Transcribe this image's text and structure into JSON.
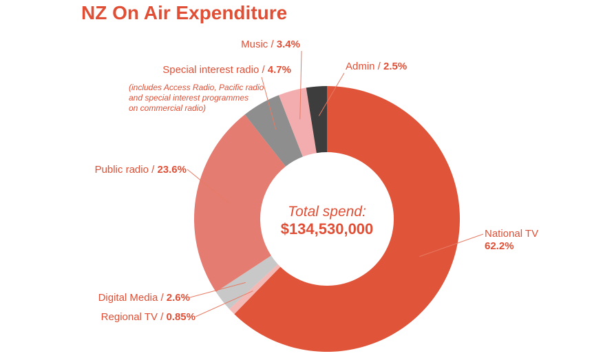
{
  "chart_data": {
    "type": "pie",
    "title": "NZ On Air Expenditure",
    "center_label": "Total spend:",
    "center_value": "$134,530,000",
    "slices": [
      {
        "name": "National TV",
        "sep": "",
        "pct_label": "62.2%",
        "value": 62.2,
        "color": "#e0553a"
      },
      {
        "name": "Regional TV",
        "sep": " / ",
        "pct_label": "0.85%",
        "value": 0.85,
        "color": "#f4b8b5"
      },
      {
        "name": "Digital Media",
        "sep": " / ",
        "pct_label": "2.6%",
        "value": 2.6,
        "color": "#c8c8c8"
      },
      {
        "name": "Public radio",
        "sep": " / ",
        "pct_label": "23.6%",
        "value": 23.6,
        "color": "#e57c71"
      },
      {
        "name": "Special interest radio",
        "sep": " / ",
        "pct_label": "4.7%",
        "value": 4.7,
        "color": "#8e8e8e",
        "note": [
          "(includes Access Radio, Pacific radio",
          "and special interest programmes",
          "on commercial radio)"
        ]
      },
      {
        "name": "Music",
        "sep": " / ",
        "pct_label": "3.4%",
        "value": 3.4,
        "color": "#f4adaf"
      },
      {
        "name": "Admin",
        "sep": " / ",
        "pct_label": "2.5%",
        "value": 2.5,
        "color": "#3d3d3d"
      }
    ]
  },
  "colors": {
    "title": "#e04f35",
    "label": "#e04f35"
  }
}
